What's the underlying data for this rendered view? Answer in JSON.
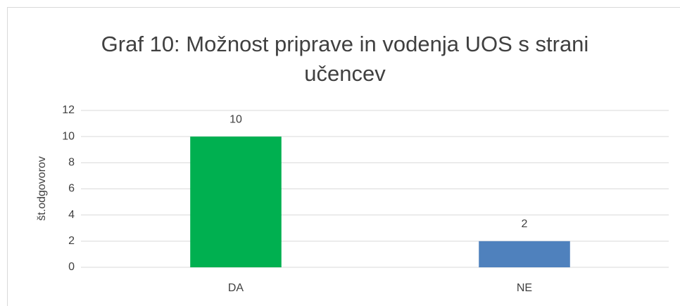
{
  "chart_data": {
    "type": "bar",
    "title": "Graf 10: Možnost priprave in vodenja UOS s strani učencev",
    "ylabel": "št.odgovorov",
    "categories": [
      "DA",
      "NE"
    ],
    "values": [
      10,
      2
    ],
    "colors": [
      "#00b050",
      "#4f81bd"
    ],
    "ylim": [
      0,
      12
    ],
    "yticks": [
      0,
      2,
      4,
      6,
      8,
      10,
      12
    ],
    "grid": true
  }
}
